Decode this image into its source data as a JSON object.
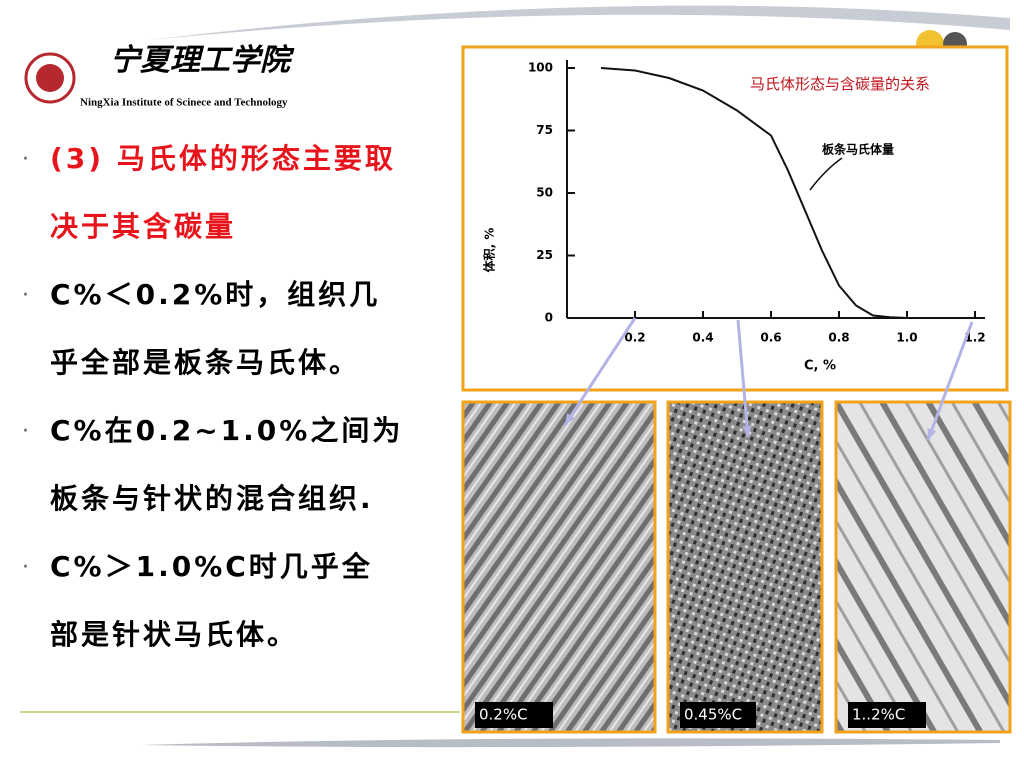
{
  "header": {
    "school_cn": "宁夏理工学院",
    "school_en": "NingXia Institute of Scinece and Technology"
  },
  "bullets": [
    {
      "lines": [
        "(3) 马氏体的形态主要取",
        "决于其含碳量"
      ],
      "color": "#e8141c"
    },
    {
      "lines": [
        "C%＜0.2%时，组织几",
        "乎全部是板条马氏体。"
      ],
      "color": "#000000"
    },
    {
      "lines": [
        "C%在0.2~1.0%之间为",
        "板条与针状的混合组织."
      ],
      "color": "#000000"
    },
    {
      "lines": [
        "C%＞1.0%C时几乎全",
        "部是针状马氏体。"
      ],
      "color": "#000000"
    }
  ],
  "photos": [
    {
      "label": "0.2%C"
    },
    {
      "label": "0.45%C"
    },
    {
      "label": "1..2%C"
    }
  ],
  "chart_data": {
    "type": "line",
    "title": "马氏体形态与含碳量的关系",
    "ylabel": "体积, %",
    "xlabel": "C, %",
    "annotation": "板条马氏体量",
    "x": [
      0.1,
      0.2,
      0.3,
      0.4,
      0.5,
      0.6,
      0.65,
      0.7,
      0.75,
      0.8,
      0.85,
      0.9,
      0.95,
      1.0
    ],
    "values": [
      100,
      99,
      96,
      91,
      83,
      73,
      59,
      43,
      27,
      13,
      5,
      1,
      0.3,
      0
    ],
    "color": "#111111",
    "xlim": [
      0,
      1.2
    ],
    "ylim": [
      0,
      100
    ],
    "xticks": [
      0.2,
      0.4,
      0.6,
      0.8,
      {
        "value": 1,
        "label": "1.0"
      },
      1.2
    ],
    "yticks": [
      0,
      25,
      50,
      75,
      100
    ]
  }
}
